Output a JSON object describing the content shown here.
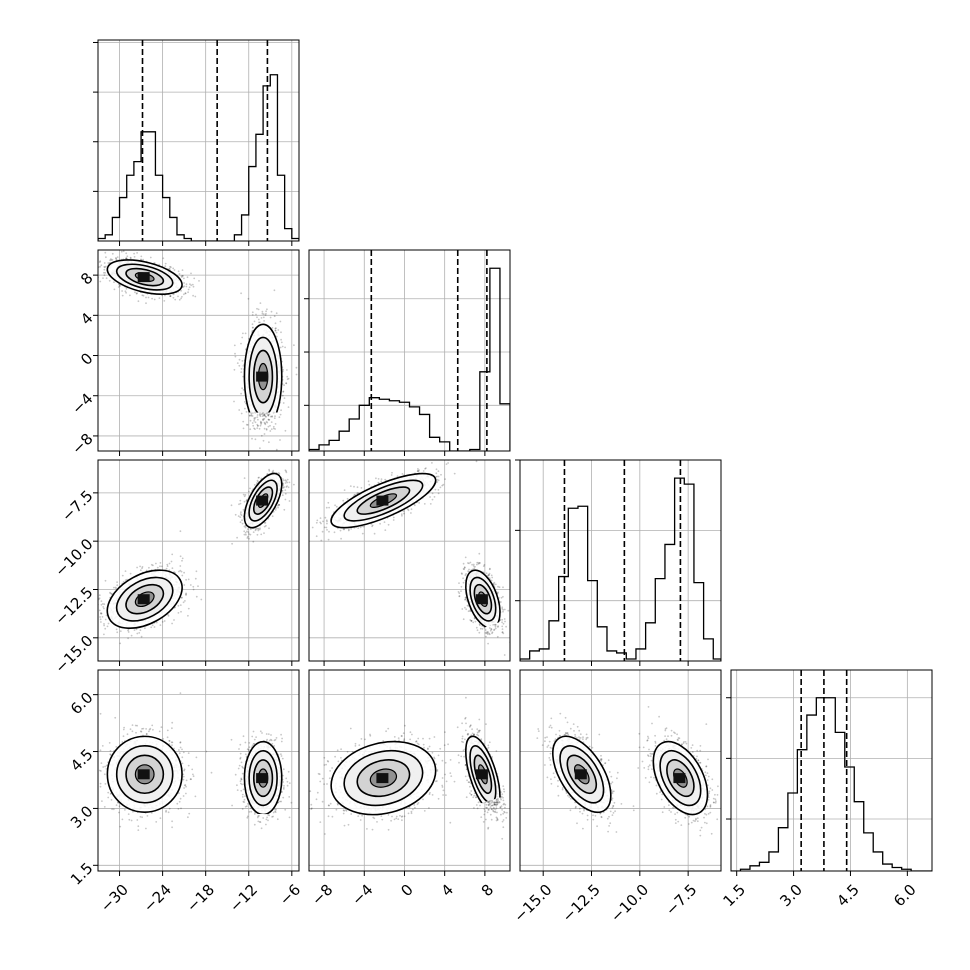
{
  "chart_data": {
    "type": "corner",
    "grid": true,
    "n_params": 4,
    "params": [
      {
        "range": [
          -33,
          -5
        ],
        "ticks": [
          -30,
          -24,
          -18,
          -12,
          -6
        ],
        "tick_labels": [
          "−30",
          "−24",
          "−18",
          "−12",
          "−6"
        ],
        "quantiles": [
          -26.8,
          -16.4,
          -9.4
        ],
        "histogram": {
          "bin_edges": [
            -33,
            -32,
            -31,
            -30,
            -29,
            -28,
            -27,
            -26,
            -25,
            -24,
            -23,
            -22,
            -21,
            -20,
            -19,
            -18,
            -17,
            -16,
            -15,
            -14,
            -13,
            -12,
            -11,
            -10,
            -9,
            -8,
            -7,
            -6,
            -5
          ],
          "counts": [
            0.02,
            0.05,
            0.19,
            0.35,
            0.53,
            0.64,
            0.88,
            0.88,
            0.53,
            0.35,
            0.19,
            0.05,
            0.02,
            0,
            0,
            0,
            0,
            0,
            0,
            0.05,
            0.21,
            0.6,
            0.86,
            1.25,
            1.34,
            0.53,
            0.1,
            0.02
          ]
        }
      },
      {
        "range": [
          -9.5,
          10.5
        ],
        "ticks": [
          -8,
          -4,
          0,
          4,
          8
        ],
        "tick_labels": [
          "−8",
          "−4",
          "0",
          "4",
          "8"
        ],
        "quantiles": [
          -3.3,
          5.3,
          8.2
        ],
        "histogram": {
          "bin_edges": [
            -9.5,
            -8.5,
            -7.5,
            -6.5,
            -5.5,
            -4.5,
            -3.5,
            -2.5,
            -1.5,
            -0.5,
            0.5,
            1.5,
            2.5,
            3.5,
            4.5,
            5.5,
            6.5,
            7.5,
            8.5,
            9.5,
            10.5
          ],
          "counts": [
            0.01,
            0.04,
            0.07,
            0.13,
            0.21,
            0.3,
            0.35,
            0.34,
            0.33,
            0.32,
            0.29,
            0.24,
            0.09,
            0.06,
            0,
            0,
            0.01,
            0.52,
            1.2,
            0.31
          ]
        }
      },
      {
        "range": [
          -16.2,
          -5.8
        ],
        "ticks": [
          -15.0,
          -12.5,
          -10.0,
          -7.5
        ],
        "tick_labels": [
          "−15.0",
          "−12.5",
          "−10.0",
          "−7.5"
        ],
        "quantiles": [
          -13.9,
          -10.8,
          -7.9
        ],
        "histogram": {
          "bin_edges": [
            -16.2,
            -15.7,
            -15.2,
            -14.7,
            -14.2,
            -13.7,
            -13.2,
            -12.7,
            -12.2,
            -11.7,
            -11.2,
            -10.7,
            -10.2,
            -9.7,
            -9.2,
            -8.7,
            -8.2,
            -7.7,
            -7.2,
            -6.7,
            -6.2,
            -5.8
          ],
          "counts": [
            0.01,
            0.05,
            0.06,
            0.2,
            0.42,
            0.76,
            0.77,
            0.4,
            0.17,
            0.05,
            0.04,
            0.01,
            0.06,
            0.19,
            0.41,
            0.58,
            0.91,
            0.88,
            0.39,
            0.11,
            0.01
          ]
        }
      },
      {
        "range": [
          1.35,
          6.65
        ],
        "ticks": [
          1.5,
          3.0,
          4.5,
          6.0
        ],
        "tick_labels": [
          "1.5",
          "3.0",
          "4.5",
          "6.0"
        ],
        "quantiles": [
          3.2,
          3.8,
          4.4
        ],
        "histogram": {
          "bin_edges": [
            1.35,
            1.6,
            1.85,
            2.1,
            2.35,
            2.6,
            2.85,
            3.1,
            3.35,
            3.6,
            3.85,
            4.1,
            4.35,
            4.6,
            4.85,
            5.1,
            5.35,
            5.6,
            5.85,
            6.1,
            6.35,
            6.65
          ],
          "counts": [
            0,
            0.01,
            0.03,
            0.05,
            0.11,
            0.25,
            0.45,
            0.7,
            0.9,
            1.0,
            1.0,
            0.8,
            0.6,
            0.4,
            0.22,
            0.11,
            0.04,
            0.02,
            0.01,
            0,
            0
          ]
        }
      }
    ],
    "hist_ymax": [
      1.62,
      1.32,
      1.0,
      1.16
    ],
    "hist_yticks": [
      [
        0.4,
        0.8,
        1.2,
        1.6
      ],
      [
        0.3,
        0.65,
        1.0
      ],
      [
        0.3,
        0.65,
        1.0
      ],
      [
        0.3,
        0.65,
        1.0
      ]
    ],
    "clusters": [
      {
        "mean": [
          -26.5,
          7.8,
          -13.0,
          3.9
        ],
        "sd": [
          2.6,
          0.85,
          0.75,
          0.5
        ],
        "weight": 0.5
      },
      {
        "mean": [
          -10.0,
          -2.1,
          -7.9,
          3.8
        ],
        "sd": [
          1.3,
          2.6,
          0.7,
          0.48
        ],
        "weight": 0.5
      }
    ],
    "pair_correlations": [
      {
        "pair": [
          0,
          1
        ],
        "r": [
          -0.45,
          0.0
        ]
      },
      {
        "pair": [
          0,
          2
        ],
        "r": [
          0.4,
          0.6
        ]
      },
      {
        "pair": [
          0,
          3
        ],
        "r": [
          0.0,
          0.0
        ]
      },
      {
        "pair": [
          1,
          2
        ],
        "r": [
          -0.45,
          0.75
        ]
      },
      {
        "pair": [
          1,
          3
        ],
        "r": [
          -0.6,
          0.2
        ]
      },
      {
        "pair": [
          2,
          3
        ],
        "r": [
          -0.55,
          -0.45
        ]
      }
    ],
    "contour_levels_sigma": [
      0.5,
      1.0,
      1.5,
      2.0
    ]
  }
}
